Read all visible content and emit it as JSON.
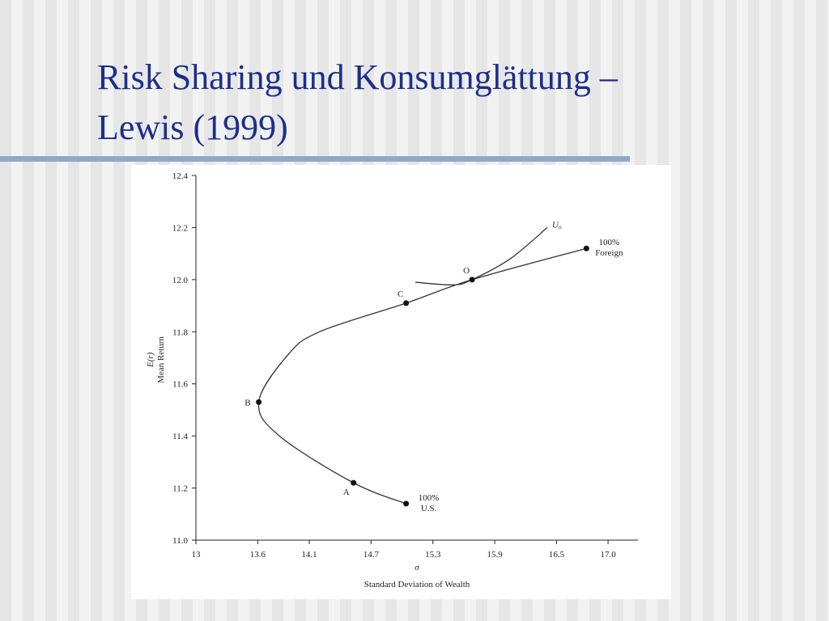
{
  "slide": {
    "title_lines": [
      "Risk Sharing und Konsumglättung –",
      "Lewis (1999)"
    ]
  },
  "chart_data": {
    "type": "line",
    "x_label": "σ",
    "x_sublabel": "Standard Deviation of Wealth",
    "y_label": "E(r)",
    "y_sublabel": "Mean Return",
    "xlim": [
      13,
      17.29
    ],
    "ylim": [
      11.0,
      12.4
    ],
    "xticks": [
      13,
      13.6,
      14.1,
      14.7,
      15.3,
      15.9,
      16.5,
      {
        "value": 17,
        "label": "17.0"
      }
    ],
    "yticks": [
      {
        "value": 11,
        "label": "11.0"
      },
      11.2,
      11.4,
      11.6,
      11.8,
      {
        "value": 12,
        "label": "12.0"
      },
      12.2,
      12.4
    ],
    "series": [
      {
        "color": "#333333",
        "x": [
          15.04,
          14.53,
          13.81,
          13.61,
          13.89,
          14.2,
          15.04,
          15.68,
          16.79
        ],
        "values": [
          11.14,
          11.22,
          11.4,
          11.53,
          11.71,
          11.8,
          11.91,
          12.0,
          12.12
        ]
      },
      {
        "name": "U₀",
        "color": "#333333",
        "x": [
          15.13,
          15.5,
          15.68,
          16.05,
          16.41
        ],
        "values": [
          11.99,
          11.98,
          12.0,
          12.08,
          12.2
        ]
      }
    ],
    "points": [
      {
        "label": [
          "100%",
          "U.S."
        ],
        "x": 15.04,
        "y": 11.14
      },
      {
        "label": [
          "A"
        ],
        "x": 14.53,
        "y": 11.22
      },
      {
        "label": [
          "B"
        ],
        "x": 13.61,
        "y": 11.53
      },
      {
        "label": [
          "C"
        ],
        "x": 15.04,
        "y": 11.91
      },
      {
        "label": [
          "O"
        ],
        "x": 15.68,
        "y": 12.0
      },
      {
        "label": [
          "100%",
          "Foreign"
        ],
        "x": 16.79,
        "y": 12.12
      }
    ]
  }
}
